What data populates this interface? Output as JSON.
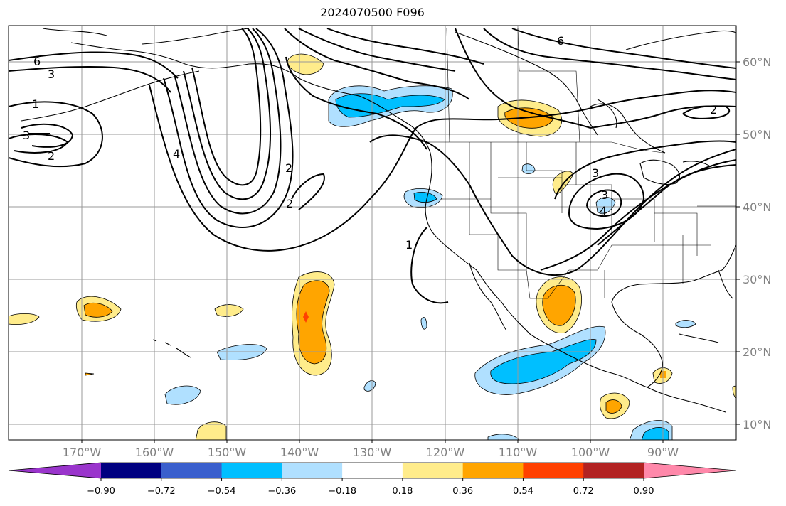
{
  "title": "2024070500 F096",
  "map": {
    "lat_labels": [
      "60°N",
      "50°N",
      "40°N",
      "30°N",
      "20°N",
      "10°N"
    ],
    "lon_labels": [
      "170°W",
      "160°W",
      "150°W",
      "140°W",
      "130°W",
      "120°W",
      "110°W",
      "100°W",
      "90°W"
    ],
    "contour_labels": [
      "6",
      "3",
      "1",
      "3",
      "2",
      "4",
      "2",
      "2",
      "1",
      "6",
      "2",
      "3",
      "3",
      "4"
    ]
  },
  "colorbar": {
    "labels": [
      "−0.90",
      "−0.72",
      "−0.54",
      "−0.36",
      "−0.18",
      "0.18",
      "0.36",
      "0.54",
      "0.72",
      "0.90"
    ],
    "colors": [
      "#9a35cc",
      "#000080",
      "#3a5fcd",
      "#00bfff",
      "#b0e0ff",
      "#ffffff",
      "#ffec8b",
      "#ffa500",
      "#ff4000",
      "#b22222",
      "#ff88aa"
    ]
  }
}
